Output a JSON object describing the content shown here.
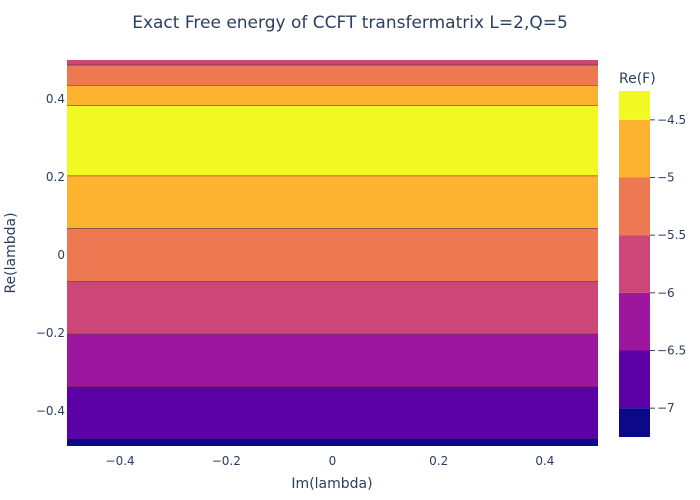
{
  "chart_data": {
    "type": "contour",
    "title": "Exact Free energy of CCFT transfermatrix L=2,Q=5",
    "xlabel": "Im(lambda)",
    "ylabel": "Re(lambda)",
    "xlim": [
      -0.5,
      0.5
    ],
    "ylim": [
      -0.49,
      0.5
    ],
    "x_ticks": [
      -0.4,
      -0.2,
      0,
      0.2,
      0.4
    ],
    "x_tick_labels": [
      "−0.4",
      "−0.2",
      "0",
      "0.2",
      "0.4"
    ],
    "y_ticks": [
      -0.4,
      -0.2,
      0,
      0.2,
      0.4
    ],
    "y_tick_labels": [
      "−0.4",
      "−0.2",
      "0",
      "0.2",
      "0.4"
    ],
    "contour_bands": [
      {
        "y_from": -0.49,
        "y_to": -0.472,
        "level": -7.25
      },
      {
        "y_from": -0.472,
        "y_to": -0.338,
        "level": -6.75
      },
      {
        "y_from": -0.338,
        "y_to": -0.203,
        "level": -6.25
      },
      {
        "y_from": -0.203,
        "y_to": -0.068,
        "level": -5.75
      },
      {
        "y_from": -0.068,
        "y_to": 0.068,
        "level": -5.25
      },
      {
        "y_from": 0.068,
        "y_to": 0.203,
        "level": -4.75
      },
      {
        "y_from": 0.203,
        "y_to": 0.383,
        "level": -4.25
      },
      {
        "y_from": 0.383,
        "y_to": 0.435,
        "level": -4.75
      },
      {
        "y_from": 0.435,
        "y_to": 0.487,
        "level": -5.25
      },
      {
        "y_from": 0.487,
        "y_to": 0.5,
        "level": -5.75
      }
    ],
    "colorbar": {
      "title": "Re(F)",
      "range": [
        -7.25,
        -4.25
      ],
      "ticks": [
        -7,
        -6.5,
        -6,
        -5.5,
        -5,
        -4.5
      ],
      "tick_labels": [
        "−7",
        "−6.5",
        "−6",
        "−5.5",
        "−5",
        "−4.5"
      ],
      "levels": [
        {
          "from": -7.25,
          "to": -7.0,
          "color": "#0d0887"
        },
        {
          "from": -7.0,
          "to": -6.5,
          "color": "#5c01a6"
        },
        {
          "from": -6.5,
          "to": -6.0,
          "color": "#9c179e"
        },
        {
          "from": -6.0,
          "to": -5.5,
          "color": "#cc4778"
        },
        {
          "from": -5.5,
          "to": -5.0,
          "color": "#ed7953"
        },
        {
          "from": -5.0,
          "to": -4.5,
          "color": "#fdb32f"
        },
        {
          "from": -4.5,
          "to": -4.25,
          "color": "#f0f921"
        }
      ]
    }
  }
}
